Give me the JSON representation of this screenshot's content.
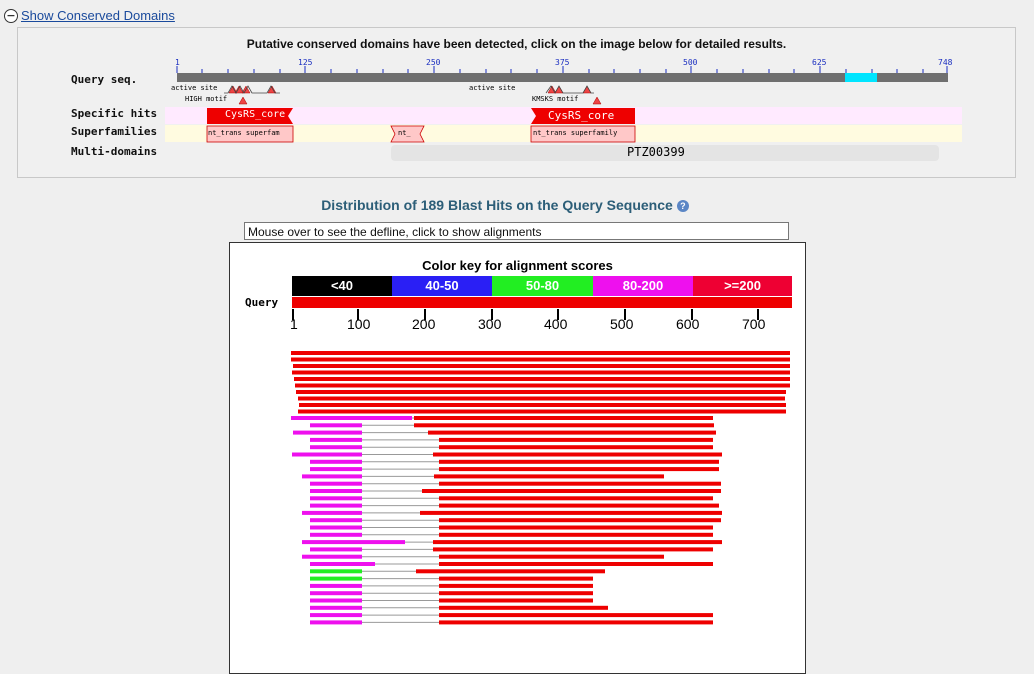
{
  "toggle": {
    "label": "Show Conserved Domains"
  },
  "cd": {
    "headline": "Putative conserved domains have been detected, click on the image below for detailed results.",
    "labels": {
      "query": "Query seq.",
      "specific": "Specific hits",
      "super": "Superfamilies",
      "multi": "Multi-domains"
    },
    "ticks": [
      "1",
      "125",
      "250",
      "375",
      "500",
      "625",
      "748"
    ],
    "annotations": {
      "active1": "active site",
      "high": "HIGH motif",
      "active2": "active site",
      "kmsks": "KMSKS motif"
    },
    "specific_hits": [
      "CysRS_core",
      "CysRS_core"
    ],
    "superfamilies": [
      "nt_trans superfam",
      "nt_",
      "nt_trans superfamily"
    ],
    "multi_domain": "PTZ00399",
    "colors": {
      "query_bar": "#6f6f6f",
      "query_highlight": "#00e5ff",
      "specific_row": "#ffeaff",
      "super_row": "#fffbe0",
      "hit_red": "#ee0000",
      "super_fill": "#ffc8c8"
    }
  },
  "dist": {
    "title": "Distribution of 189 Blast Hits on the Query Sequence",
    "help_icon": "question-icon",
    "defline": "Mouse over to see the defline, click to show alignments",
    "color_key_title": "Color key for alignment scores",
    "color_key": [
      {
        "label": "<40",
        "color": "#000000"
      },
      {
        "label": "40-50",
        "color": "#2a1ff5"
      },
      {
        "label": "50-80",
        "color": "#22ee22"
      },
      {
        "label": "80-200",
        "color": "#ee10ee"
      },
      {
        "label": ">=200",
        "color": "#ee0033"
      }
    ],
    "query_label": "Query",
    "axis_labels": [
      "1",
      "100",
      "200",
      "300",
      "400",
      "500",
      "600",
      "700"
    ]
  }
}
